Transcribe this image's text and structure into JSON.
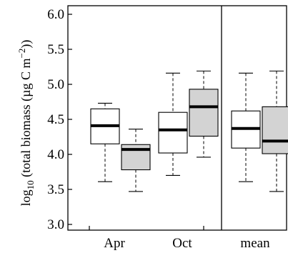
{
  "chart_data": {
    "type": "boxplot",
    "ylabel": {
      "prefix": "log",
      "subscript": "10",
      "main": " (total biomass (µg C m",
      "superscript": "−2",
      "suffix": "))"
    },
    "ylim": [
      2.9,
      6.1
    ],
    "yticks": [
      3.0,
      3.5,
      4.0,
      4.5,
      5.0,
      5.5,
      6.0
    ],
    "ytick_labels": [
      "3.0",
      "3.5",
      "4.0",
      "4.5",
      "5.0",
      "5.5",
      "6.0"
    ],
    "groups": [
      {
        "label": "Apr"
      },
      {
        "label": "Oct"
      },
      {
        "label": "mean"
      }
    ],
    "separator_after_group": 1,
    "fills": {
      "white_box": "#ffffff",
      "grey_box": "#d3d3d3",
      "line": "#000000"
    },
    "boxes": [
      {
        "group": 0,
        "fill": "white",
        "whisker_low": 3.61,
        "q1": 4.15,
        "median": 4.41,
        "q3": 4.65,
        "whisker_high": 4.73
      },
      {
        "group": 0,
        "fill": "grey",
        "whisker_low": 3.47,
        "q1": 3.78,
        "median": 4.07,
        "q3": 4.14,
        "whisker_high": 4.36
      },
      {
        "group": 1,
        "fill": "white",
        "whisker_low": 3.7,
        "q1": 4.02,
        "median": 4.35,
        "q3": 4.6,
        "whisker_high": 5.16
      },
      {
        "group": 1,
        "fill": "grey",
        "whisker_low": 3.96,
        "q1": 4.26,
        "median": 4.68,
        "q3": 4.93,
        "whisker_high": 5.19
      },
      {
        "group": 2,
        "fill": "white",
        "whisker_low": 3.61,
        "q1": 4.09,
        "median": 4.37,
        "q3": 4.62,
        "whisker_high": 5.16
      },
      {
        "group": 2,
        "fill": "grey",
        "whisker_low": 3.47,
        "q1": 4.01,
        "median": 4.19,
        "q3": 4.68,
        "whisker_high": 5.19
      }
    ]
  }
}
